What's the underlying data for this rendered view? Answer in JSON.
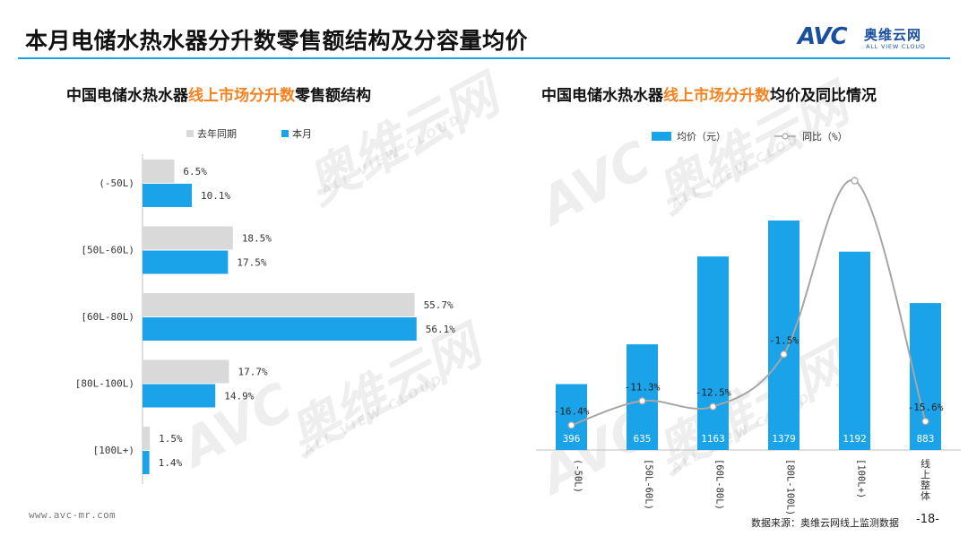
{
  "header": {
    "title": "本月电储水热水器分升数零售额结构及分容量均价",
    "logo_mark": "AVC",
    "logo_cn": "奥维云网",
    "logo_en": "ALL VIEW CLOUD"
  },
  "left_section": {
    "title_pre": "中国电储水热水器",
    "title_hl": "线上市场分升数",
    "title_post": "零售额结构"
  },
  "right_section": {
    "title_pre": "中国电储水热水器",
    "title_hl": "线上市场分升数",
    "title_post": "均价及同比情况"
  },
  "chart_data": [
    {
      "type": "bar",
      "orientation": "horizontal",
      "categories": [
        "(-50L)",
        "[50L-60L)",
        "[60L-80L)",
        "[80L-100L)",
        "[100L+)"
      ],
      "series": [
        {
          "name": "去年同期",
          "values": [
            6.5,
            18.5,
            55.7,
            17.7,
            1.5
          ],
          "labels": [
            "6.5%",
            "18.5%",
            "55.7%",
            "17.7%",
            "1.5%"
          ],
          "color": "#d9d9d9"
        },
        {
          "name": "本月",
          "values": [
            10.1,
            17.5,
            56.1,
            14.9,
            1.4
          ],
          "labels": [
            "10.1%",
            "17.5%",
            "56.1%",
            "14.9%",
            "1.4%"
          ],
          "color": "#1aa3e8"
        }
      ],
      "legend_position": "top",
      "xlim": [
        0,
        60
      ]
    },
    {
      "type": "bar+line",
      "categories": [
        "(-50L)",
        "[50L-60L)",
        "[60L-80L)",
        "[80L-100L)",
        "[100L+)",
        "线上整体"
      ],
      "bar_series": {
        "name": "均价（元）",
        "values": [
          396,
          635,
          1163,
          1379,
          1192,
          883
        ],
        "color": "#1aa3e8"
      },
      "line_series": {
        "name": "同比（%）",
        "values": [
          -16.4,
          -11.3,
          -12.5,
          -1.5,
          35.0,
          -15.6
        ],
        "labels": [
          "-16.4%",
          "-11.3%",
          "-12.5%",
          "-1.5%",
          "",
          "-15.6%"
        ],
        "color": "#a6a6a6"
      },
      "legend_position": "top",
      "ylim_bar": [
        0,
        1600
      ],
      "ylim_line": [
        -25,
        40
      ]
    }
  ],
  "footer": {
    "url": "www.avc-mr.com",
    "source": "数据来源：奥维云网线上监测数据",
    "page": "-18-"
  },
  "watermark": {
    "mark": "AVC",
    "cn": "奥维云网",
    "en": "ALL VIEW CLOUD"
  }
}
